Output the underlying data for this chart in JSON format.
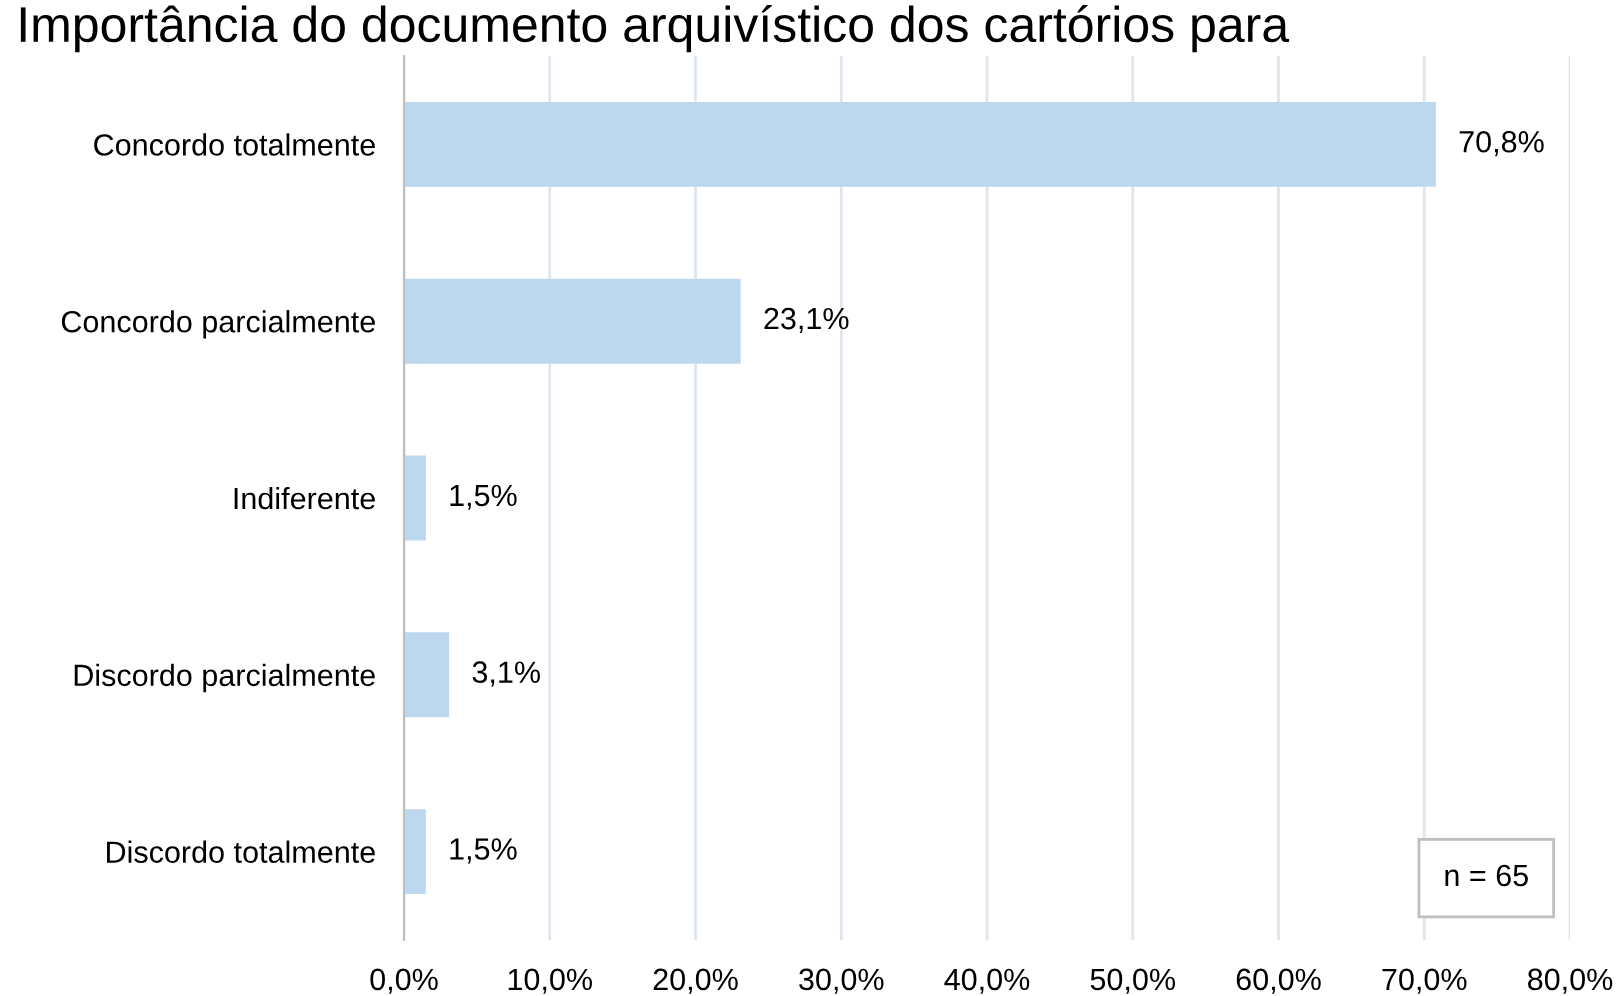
{
  "chart_data": {
    "type": "bar",
    "orientation": "horizontal",
    "title": "Importância do documento arquivístico dos cartórios para",
    "categories": [
      "Concordo totalmente",
      "Concordo parcialmente",
      "Indiferente",
      "Discordo parcialmente",
      "Discordo totalmente"
    ],
    "values": [
      70.8,
      23.1,
      1.5,
      3.1,
      1.5
    ],
    "color": "#bdd7ee",
    "value_labels": [
      "70,8%",
      "23,1%",
      "1,5%",
      "3,1%",
      "1,5%"
    ],
    "xlim": [
      0,
      80
    ],
    "xticks": [
      {
        "value": 0,
        "label": "0,0%"
      },
      {
        "value": 10,
        "label": "10,0%"
      },
      {
        "value": 20,
        "label": "20,0%"
      },
      {
        "value": 30,
        "label": "30,0%"
      },
      {
        "value": 40,
        "label": "40,0%"
      },
      {
        "value": 50,
        "label": "50,0%"
      },
      {
        "value": 60,
        "label": "60,0%"
      },
      {
        "value": 70,
        "label": "70,0%"
      },
      {
        "value": 80,
        "label": "80,0%"
      }
    ],
    "grid": "x",
    "annotations": [
      "n = 65"
    ]
  }
}
